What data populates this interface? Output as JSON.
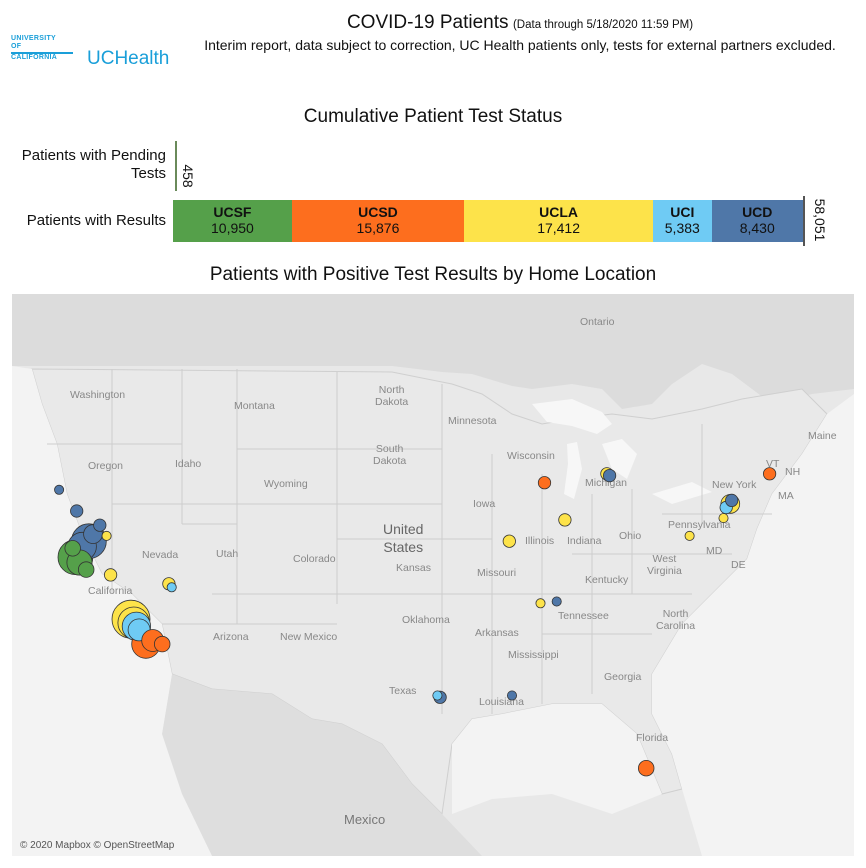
{
  "header": {
    "logo_lines": [
      "UNIVERSITY",
      "OF",
      "CALIFORNIA"
    ],
    "logo_text": "UCHealth",
    "title": "COVID-19 Patients",
    "title_sub": "(Data through 5/18/2020 11:59 PM)",
    "note": "Interim report, data subject to correction, UC Health patients only, tests for external partners excluded."
  },
  "bar_section_title": "Cumulative Patient Test Status",
  "map_section_title": "Patients with Positive Test Results by Home Location",
  "chart_data": [
    {
      "type": "bar",
      "orientation": "horizontal-stacked",
      "title": "Cumulative Patient Test Status",
      "categories": [
        "Patients with Pending Tests",
        "Patients with Results"
      ],
      "pending_total": "458",
      "results_total": "58,051",
      "series": [
        {
          "name": "UCSF",
          "value": 10950,
          "label": "10,950",
          "color": "#55a04a"
        },
        {
          "name": "UCSD",
          "value": 15876,
          "label": "15,876",
          "color": "#fd6e1e"
        },
        {
          "name": "UCLA",
          "value": 17412,
          "label": "17,412",
          "color": "#fde34a"
        },
        {
          "name": "UCI",
          "value": 5383,
          "label": "5,383",
          "color": "#6fcbf4"
        },
        {
          "name": "UCD",
          "value": 8430,
          "label": "8,430",
          "color": "#4f77a8"
        }
      ]
    },
    {
      "type": "scatter",
      "title": "Patients with Positive Test Results by Home Location",
      "basemap_credit": "© 2020 Mapbox © OpenStreetMap",
      "labels": {
        "ontario": "Ontario",
        "washington": "Washington",
        "montana": "Montana",
        "north_dakota": "North\nDakota",
        "minnesota": "Minnesota",
        "maine": "Maine",
        "oregon": "Oregon",
        "idaho": "Idaho",
        "south_dakota": "South\nDakota",
        "wisconsin": "Wisconsin",
        "michigan": "Michigan",
        "vt": "VT",
        "nh": "NH",
        "wyoming": "Wyoming",
        "new_york": "New York",
        "ma": "MA",
        "iowa": "Iowa",
        "pennsylvania": "Pennsylvania",
        "nevada": "Nevada",
        "utah": "Utah",
        "colorado": "Colorado",
        "united_states": "United\nStates",
        "illinois": "Illinois",
        "indiana": "Indiana",
        "ohio": "Ohio",
        "california": "California",
        "kansas": "Kansas",
        "missouri": "Missouri",
        "west_virginia": "West\nVirginia",
        "md": "MD",
        "de": "DE",
        "kentucky": "Kentucky",
        "tennessee": "Tennessee",
        "north_carolina": "North\nCarolina",
        "arizona": "Arizona",
        "new_mexico": "New Mexico",
        "oklahoma": "Oklahoma",
        "arkansas": "Arkansas",
        "mississippi": "Mississippi",
        "georgia": "Georgia",
        "texas": "Texas",
        "louisiana": "Louisiana",
        "florida": "Florida",
        "mexico": "Mexico"
      },
      "colors": {
        "UCSF": "#55a04a",
        "UCSD": "#fd6e1e",
        "UCLA": "#fde34a",
        "UCI": "#6fcbf4",
        "UCD": "#4f77a8"
      },
      "points": [
        {
          "lon": -122.3,
          "lat": 37.7,
          "system": "UCSF",
          "magnitude": 9
        },
        {
          "lon": -122.0,
          "lat": 37.4,
          "system": "UCSF",
          "magnitude": 6
        },
        {
          "lon": -121.5,
          "lat": 37.0,
          "system": "UCSF",
          "magnitude": 3
        },
        {
          "lon": -122.5,
          "lat": 38.2,
          "system": "UCSF",
          "magnitude": 3
        },
        {
          "lon": -121.3,
          "lat": 38.6,
          "system": "UCD",
          "magnitude": 9
        },
        {
          "lon": -121.8,
          "lat": 38.3,
          "system": "UCD",
          "magnitude": 7
        },
        {
          "lon": -121.0,
          "lat": 39.0,
          "system": "UCD",
          "magnitude": 4
        },
        {
          "lon": -120.5,
          "lat": 39.5,
          "system": "UCD",
          "magnitude": 2
        },
        {
          "lon": -122.2,
          "lat": 40.3,
          "system": "UCD",
          "magnitude": 2
        },
        {
          "lon": -123.5,
          "lat": 41.5,
          "system": "UCD",
          "magnitude": 1
        },
        {
          "lon": -120.0,
          "lat": 38.9,
          "system": "UCLA",
          "magnitude": 1
        },
        {
          "lon": -119.7,
          "lat": 36.7,
          "system": "UCLA",
          "magnitude": 2
        },
        {
          "lon": -118.2,
          "lat": 34.2,
          "system": "UCLA",
          "magnitude": 10
        },
        {
          "lon": -118.0,
          "lat": 34.0,
          "system": "UCLA",
          "magnitude": 8
        },
        {
          "lon": -117.8,
          "lat": 33.8,
          "system": "UCI",
          "magnitude": 7
        },
        {
          "lon": -117.6,
          "lat": 33.6,
          "system": "UCI",
          "magnitude": 5
        },
        {
          "lon": -117.1,
          "lat": 32.8,
          "system": "UCSD",
          "magnitude": 7
        },
        {
          "lon": -116.6,
          "lat": 33.0,
          "system": "UCSD",
          "magnitude": 5
        },
        {
          "lon": -115.9,
          "lat": 32.8,
          "system": "UCSD",
          "magnitude": 3
        },
        {
          "lon": -115.4,
          "lat": 36.2,
          "system": "UCLA",
          "magnitude": 2
        },
        {
          "lon": -115.2,
          "lat": 36.0,
          "system": "UCI",
          "magnitude": 1
        },
        {
          "lon": -87.7,
          "lat": 41.9,
          "system": "UCSD",
          "magnitude": 2
        },
        {
          "lon": -90.3,
          "lat": 38.6,
          "system": "UCLA",
          "magnitude": 2
        },
        {
          "lon": -86.2,
          "lat": 39.8,
          "system": "UCLA",
          "magnitude": 2
        },
        {
          "lon": -83.1,
          "lat": 42.4,
          "system": "UCLA",
          "magnitude": 2
        },
        {
          "lon": -82.9,
          "lat": 42.3,
          "system": "UCD",
          "magnitude": 2
        },
        {
          "lon": -88.0,
          "lat": 35.1,
          "system": "UCLA",
          "magnitude": 1
        },
        {
          "lon": -86.8,
          "lat": 35.2,
          "system": "UCD",
          "magnitude": 1
        },
        {
          "lon": -95.4,
          "lat": 29.8,
          "system": "UCD",
          "magnitude": 2
        },
        {
          "lon": -95.6,
          "lat": 29.9,
          "system": "UCI",
          "magnitude": 1
        },
        {
          "lon": -90.1,
          "lat": 29.9,
          "system": "UCD",
          "magnitude": 1
        },
        {
          "lon": -74.0,
          "lat": 40.7,
          "system": "UCLA",
          "magnitude": 4
        },
        {
          "lon": -74.3,
          "lat": 40.5,
          "system": "UCI",
          "magnitude": 2
        },
        {
          "lon": -73.9,
          "lat": 40.9,
          "system": "UCD",
          "magnitude": 2
        },
        {
          "lon": -74.5,
          "lat": 39.9,
          "system": "UCLA",
          "magnitude": 1
        },
        {
          "lon": -77.0,
          "lat": 38.9,
          "system": "UCLA",
          "magnitude": 1
        },
        {
          "lon": -71.1,
          "lat": 42.4,
          "system": "UCSD",
          "magnitude": 2
        },
        {
          "lon": -80.2,
          "lat": 25.8,
          "system": "UCSD",
          "magnitude": 3
        }
      ]
    }
  ]
}
